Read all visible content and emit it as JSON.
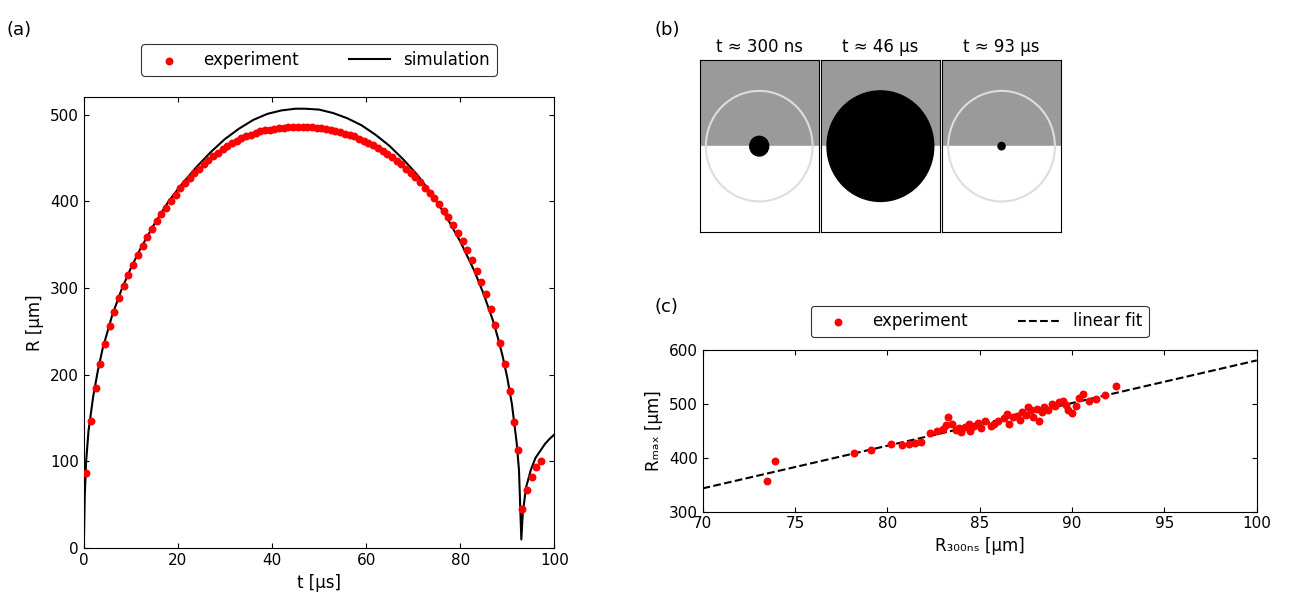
{
  "chart_data": [
    {
      "type": "line",
      "panel_label": "(a)",
      "x_label": "t [µs]",
      "y_label": "R [µm]",
      "xlim": [
        0,
        100
      ],
      "ylim": [
        0,
        520
      ],
      "xticks": [
        0,
        20,
        40,
        60,
        80,
        100
      ],
      "yticks": [
        0,
        100,
        200,
        300,
        400,
        500
      ],
      "grid": false,
      "legend": "above",
      "series": [
        {
          "name": "experiment",
          "type": "scatter",
          "color": "#ff0000",
          "marker": "o",
          "x": [
            0.5,
            1.5,
            2.5,
            3.5,
            4.5,
            5.5,
            6.5,
            7.5,
            8.5,
            9.5,
            10.5,
            11.5,
            12.5,
            13.5,
            14.5,
            15.5,
            16.5,
            17.5,
            18.5,
            19.5,
            20.5,
            21.5,
            22.5,
            23.5,
            24.5,
            25.5,
            26.5,
            27.5,
            28.5,
            29.5,
            30.5,
            31.5,
            32.5,
            33.5,
            34.5,
            35.5,
            36.5,
            37.5,
            38.5,
            39.5,
            40.5,
            41.5,
            42.5,
            43.5,
            44.5,
            45.5,
            46.5,
            47.5,
            48.5,
            49.5,
            50.5,
            51.5,
            52.5,
            53.5,
            54.5,
            55.5,
            56.5,
            57.5,
            58.5,
            59.5,
            60.5,
            61.5,
            62.5,
            63.5,
            64.5,
            65.5,
            66.5,
            67.5,
            68.5,
            69.5,
            70.5,
            71.5,
            72.5,
            73.5,
            74.5,
            75.5,
            76.5,
            77.5,
            78.5,
            79.5,
            80.5,
            81.5,
            82.5,
            83.5,
            84.5,
            85.5,
            86.5,
            87.5,
            88.5,
            89.5,
            90.5,
            91.5,
            92.3,
            93.2,
            94.2,
            95.2,
            96.2,
            97.2
          ],
          "values": [
            87,
            147,
            185,
            212,
            236,
            256,
            273,
            289,
            302,
            315,
            327,
            338,
            349,
            359,
            368,
            377,
            385,
            393,
            401,
            408,
            415,
            421,
            427,
            433,
            438,
            443,
            448,
            452,
            456,
            460,
            464,
            467,
            470,
            473,
            475,
            477,
            479,
            481,
            482,
            483,
            484,
            485,
            485,
            486,
            486,
            486,
            486,
            486,
            486,
            485,
            485,
            484,
            483,
            481,
            480,
            478,
            477,
            475,
            472,
            470,
            467,
            465,
            462,
            458,
            455,
            451,
            447,
            443,
            438,
            433,
            428,
            422,
            416,
            410,
            404,
            397,
            389,
            382,
            373,
            364,
            354,
            344,
            333,
            320,
            307,
            293,
            276,
            258,
            237,
            212,
            181,
            145,
            113,
            45,
            67,
            82,
            94,
            101
          ]
        },
        {
          "name": "simulation",
          "type": "line",
          "color": "#000000",
          "line_style": "solid",
          "x": [
            0,
            0.2,
            0.5,
            1,
            2,
            3,
            4,
            6,
            8,
            10,
            12,
            15,
            18,
            21,
            24,
            27,
            30,
            33,
            36,
            39,
            42,
            45,
            47,
            50,
            53,
            56,
            59,
            62,
            65,
            68,
            71,
            74,
            77,
            80,
            83,
            85,
            87,
            88,
            89,
            90,
            91,
            92,
            92.5,
            93,
            93.3,
            94,
            95,
            96,
            97,
            98,
            99,
            100
          ],
          "values": [
            0,
            60,
            100,
            135,
            175,
            205,
            230,
            268,
            298,
            323,
            345,
            374,
            400,
            421,
            440,
            457,
            472,
            484,
            494,
            501,
            505,
            507,
            507,
            506,
            502,
            496,
            488,
            477,
            464,
            448,
            430,
            408,
            383,
            354,
            320,
            293,
            262,
            243,
            222,
            197,
            166,
            122,
            90,
            10,
            40,
            70,
            90,
            104,
            112,
            120,
            126,
            131
          ]
        }
      ]
    },
    {
      "type": "image",
      "panel_label": "(b)",
      "titles": [
        "t ≈ 300 ns",
        "t ≈ 46 µs",
        "t ≈ 93 µs"
      ]
    },
    {
      "type": "scatter",
      "panel_label": "(c)",
      "x_label": "R₃₀₀ₙₛ [µm]",
      "y_label": "Rₘₐₓ [µm]",
      "xlim": [
        70,
        100
      ],
      "ylim": [
        300,
        600
      ],
      "xticks": [
        70,
        75,
        80,
        85,
        90,
        95,
        100
      ],
      "yticks": [
        300,
        400,
        500,
        600
      ],
      "grid": false,
      "legend": "above",
      "series": [
        {
          "name": "experiment",
          "type": "scatter",
          "color": "#ff0000",
          "marker": "o",
          "x": [
            73.5,
            73.9,
            78.2,
            79.1,
            80.2,
            80.8,
            81.2,
            81.5,
            81.8,
            82.3,
            82.7,
            83.0,
            83.2,
            83.3,
            83.5,
            83.7,
            83.9,
            84.0,
            84.2,
            84.4,
            84.5,
            84.7,
            84.9,
            85.1,
            85.3,
            85.6,
            85.8,
            86.0,
            86.3,
            86.5,
            86.6,
            86.8,
            87.0,
            87.2,
            87.3,
            87.5,
            87.6,
            87.8,
            87.9,
            88.1,
            88.2,
            88.4,
            88.5,
            88.7,
            88.9,
            89.1,
            89.3,
            89.5,
            89.7,
            89.8,
            90.0,
            90.2,
            90.4,
            90.6,
            90.9,
            91.3,
            91.8,
            92.4
          ],
          "values": [
            357,
            394,
            409,
            415,
            425,
            424,
            425,
            427,
            429,
            446,
            449,
            453,
            460,
            475,
            462,
            451,
            455,
            448,
            457,
            463,
            450,
            459,
            464,
            456,
            468,
            459,
            462,
            469,
            474,
            482,
            463,
            475,
            478,
            470,
            486,
            480,
            495,
            489,
            476,
            491,
            468,
            485,
            494,
            488,
            500,
            497,
            503,
            506,
            499,
            489,
            484,
            497,
            511,
            518,
            506,
            510,
            516,
            533
          ]
        },
        {
          "name": "linear fit",
          "type": "line",
          "color": "#000000",
          "line_style": "dashed",
          "x": [
            70,
            100
          ],
          "values": [
            343,
            581
          ]
        }
      ]
    }
  ]
}
